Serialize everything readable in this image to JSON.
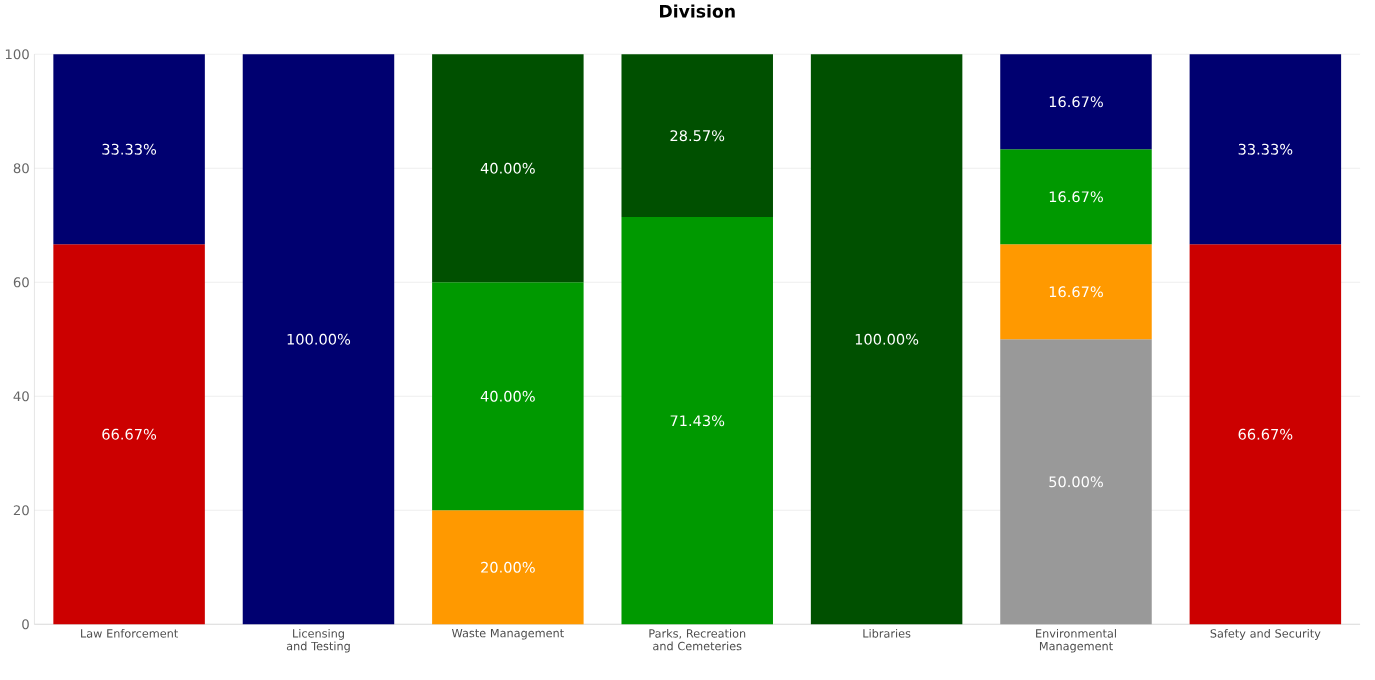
{
  "chart_data": {
    "type": "bar",
    "title": "Division",
    "stacked": true,
    "grid": "y",
    "categories": [
      "Law Enforcement",
      "Licensing and Testing",
      "Waste Management",
      "Parks, Recreation and Cemeteries",
      "Libraries",
      "Environmental Management",
      "Safety and Security"
    ],
    "ylim": [
      0,
      100
    ],
    "yticks": [
      0,
      20,
      40,
      60,
      80,
      100
    ],
    "series": [
      {
        "color": "#999999",
        "values": [
          null,
          null,
          null,
          null,
          null,
          50.0,
          null
        ],
        "value_labels": [
          null,
          null,
          null,
          null,
          null,
          "50.00%",
          null
        ]
      },
      {
        "color": "#cc0000",
        "values": [
          66.67,
          null,
          null,
          null,
          null,
          null,
          66.67
        ],
        "value_labels": [
          "66.67%",
          null,
          null,
          null,
          null,
          null,
          "66.67%"
        ]
      },
      {
        "color": "#ff9900",
        "values": [
          null,
          null,
          20.0,
          null,
          null,
          16.67,
          null
        ],
        "value_labels": [
          null,
          null,
          "20.00%",
          null,
          null,
          "16.67%",
          null
        ]
      },
      {
        "color": "#009900",
        "values": [
          null,
          null,
          40.0,
          71.43,
          null,
          16.67,
          null
        ],
        "value_labels": [
          null,
          null,
          "40.00%",
          "71.43%",
          null,
          "16.67%",
          null
        ]
      },
      {
        "color": "#005000",
        "values": [
          null,
          null,
          40.0,
          28.57,
          100.0,
          null,
          null
        ],
        "value_labels": [
          null,
          null,
          "40.00%",
          "28.57%",
          "100.00%",
          null,
          null
        ]
      },
      {
        "color": "#000070",
        "values": [
          33.33,
          100.0,
          null,
          null,
          null,
          16.67,
          33.33
        ],
        "value_labels": [
          "33.33%",
          "100.00%",
          null,
          null,
          null,
          "16.67%",
          "33.33%"
        ]
      }
    ]
  }
}
